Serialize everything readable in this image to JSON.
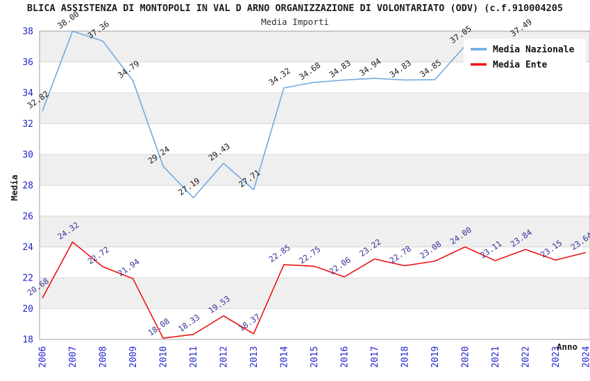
{
  "title": "BLICA ASSISTENZA DI MONTOPOLI IN VAL D ARNO ORGANIZZAZIONE DI VOLONTARIATO (ODV) (c.f.910004205",
  "subtitle": "Media Importi",
  "chart_data": {
    "type": "line",
    "x": [
      "2006",
      "2007",
      "2008",
      "2009",
      "2010",
      "2011",
      "2012",
      "2013",
      "2014",
      "2015",
      "2016",
      "2017",
      "2018",
      "2019",
      "2020",
      "2021",
      "2022",
      "2023",
      "2024"
    ],
    "series": [
      {
        "name": "Media Nazionale",
        "color": "#6fa8e0",
        "label_color": "#1a1a1a",
        "values": [
          32.82,
          38.0,
          37.36,
          34.79,
          29.24,
          27.19,
          29.43,
          27.71,
          34.32,
          34.68,
          34.83,
          34.94,
          34.83,
          34.85,
          37.05,
          null,
          37.49,
          null,
          null
        ]
      },
      {
        "name": "Media Ente",
        "color": "#ee1111",
        "label_color": "#333399",
        "values": [
          20.68,
          24.32,
          22.72,
          21.94,
          18.08,
          18.33,
          19.53,
          18.37,
          22.85,
          22.75,
          22.06,
          23.22,
          22.78,
          23.08,
          24.0,
          23.11,
          23.84,
          23.15,
          23.64
        ]
      }
    ],
    "xlabel": "Anno",
    "ylabel": "Media",
    "ylim": [
      18,
      38
    ],
    "ytick_step": 2,
    "yticks": [
      "18",
      "20",
      "22",
      "24",
      "26",
      "28",
      "30",
      "32",
      "34",
      "36",
      "38"
    ],
    "tick_color": "#2222cc",
    "band_color": "#efefef",
    "grid_color": "#d8d8d8",
    "border_color": "#9e9e9e",
    "legend_position": "top-right",
    "legend_bg": "#ffffff",
    "legend_entries": [
      "Media Nazionale",
      "Media Ente"
    ]
  }
}
